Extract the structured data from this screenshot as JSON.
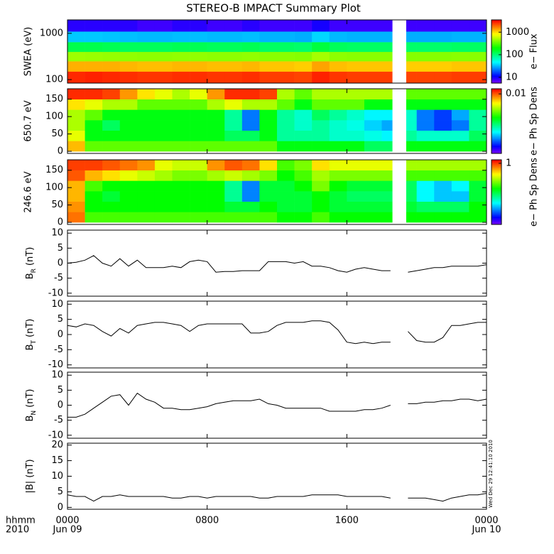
{
  "title": "STEREO-B IMPACT Summary Plot",
  "x_label": [
    "hhmm",
    "2010"
  ],
  "xlim": [
    0,
    24
  ],
  "xticks": [
    {
      "value": 0,
      "label": "0000",
      "date": "Jun 09"
    },
    {
      "value": 8,
      "label": "0800"
    },
    {
      "value": 16,
      "label": "1600"
    },
    {
      "value": 24,
      "label": "0000",
      "date": "Jun 10"
    }
  ],
  "timestamp": "Wed Dec 29 12:41:10 2010",
  "chart_data": [
    {
      "type": "heatmap",
      "ylabel": "SWEA (eV)",
      "ylog": true,
      "ylim": [
        84,
        1950
      ],
      "yticks": [
        100,
        1000
      ],
      "x_bins": [
        0,
        1,
        2,
        3,
        4,
        5,
        6,
        7,
        8,
        9,
        10,
        11,
        12,
        13,
        14,
        15,
        16,
        17,
        18,
        18.6,
        19.4,
        20,
        21,
        22,
        23,
        24
      ],
      "y_bins": [
        84,
        150,
        250,
        400,
        650,
        1100,
        1950
      ],
      "values": [
        [
          2800,
          2900,
          2800,
          2700,
          2600,
          2600,
          2700,
          2700,
          2600,
          2600,
          2700,
          2500,
          2500,
          2400,
          2900,
          2600,
          2500,
          2500,
          2500,
          null,
          2400,
          2400,
          2400,
          2500,
          2500
        ],
        [
          1300,
          1300,
          1300,
          1250,
          1200,
          1200,
          1250,
          1250,
          1200,
          1200,
          1250,
          1150,
          1150,
          1100,
          1400,
          1200,
          1150,
          1150,
          1150,
          null,
          1100,
          1100,
          1100,
          1150,
          1150
        ],
        [
          480,
          470,
          460,
          450,
          440,
          440,
          450,
          450,
          440,
          440,
          450,
          430,
          430,
          420,
          500,
          440,
          430,
          430,
          430,
          null,
          420,
          420,
          420,
          430,
          430
        ],
        [
          130,
          130,
          125,
          120,
          120,
          120,
          125,
          125,
          120,
          120,
          125,
          115,
          115,
          110,
          140,
          120,
          115,
          115,
          115,
          null,
          110,
          110,
          110,
          115,
          115
        ],
        [
          35,
          35,
          34,
          33,
          32,
          32,
          33,
          33,
          32,
          32,
          33,
          31,
          31,
          30,
          38,
          32,
          31,
          31,
          31,
          null,
          30,
          30,
          30,
          31,
          31
        ],
        [
          9,
          9,
          9,
          9,
          8,
          8,
          9,
          9,
          8,
          8,
          9,
          8,
          8,
          8,
          10,
          8,
          8,
          8,
          8,
          null,
          8,
          8,
          8,
          8,
          8
        ]
      ],
      "colorbar": {
        "label": "e− Flux",
        "log": true,
        "lim": [
          5.5,
          3500
        ],
        "ticks": [
          10,
          100,
          1000
        ]
      }
    },
    {
      "type": "heatmap",
      "ylabel": "650.7 eV",
      "ylog": false,
      "ylim": [
        -6,
        180
      ],
      "yticks": [
        0,
        50,
        100,
        150
      ],
      "x_bins": [
        0,
        1,
        2,
        3,
        4,
        5,
        6,
        7,
        8,
        9,
        10,
        11,
        12,
        13,
        14,
        15,
        16,
        17,
        18,
        18.6,
        19.4,
        20,
        21,
        22,
        23,
        24
      ],
      "y_bins": [
        0,
        30,
        60,
        90,
        120,
        150,
        180
      ],
      "values": [
        [
          0.007,
          0.003,
          0.003,
          0.003,
          0.003,
          0.003,
          0.003,
          0.003,
          0.003,
          0.003,
          0.003,
          0.003,
          0.002,
          0.002,
          0.002,
          0.002,
          0.002,
          0.0015,
          0.0015,
          null,
          0.002,
          0.002,
          0.002,
          0.002,
          0.002
        ],
        [
          0.005,
          0.002,
          0.002,
          0.002,
          0.002,
          0.002,
          0.002,
          0.002,
          0.002,
          0.0015,
          0.0015,
          0.002,
          0.0012,
          0.0012,
          0.0012,
          0.001,
          0.001,
          0.0009,
          0.0008,
          null,
          0.0012,
          0.001,
          0.001,
          0.001,
          0.0015
        ],
        [
          0.004,
          0.002,
          0.0015,
          0.002,
          0.002,
          0.002,
          0.002,
          0.002,
          0.002,
          0.0012,
          0.0005,
          0.002,
          0.0012,
          0.001,
          0.0012,
          0.001,
          0.0009,
          0.0007,
          0.0006,
          null,
          0.001,
          0.0005,
          0.0004,
          0.0005,
          0.0012
        ],
        [
          0.004,
          0.003,
          0.002,
          0.002,
          0.002,
          0.002,
          0.002,
          0.002,
          0.002,
          0.0012,
          0.0005,
          0.002,
          0.0012,
          0.001,
          0.0015,
          0.0012,
          0.001,
          0.0008,
          0.0008,
          null,
          0.001,
          0.0005,
          0.0004,
          0.0006,
          0.0012
        ],
        [
          0.006,
          0.005,
          0.004,
          0.004,
          0.003,
          0.003,
          0.003,
          0.003,
          0.004,
          0.005,
          0.004,
          0.004,
          0.003,
          0.002,
          0.003,
          0.003,
          0.003,
          0.002,
          0.002,
          null,
          0.002,
          0.002,
          0.002,
          0.002,
          0.002
        ],
        [
          0.012,
          0.012,
          0.011,
          0.008,
          0.006,
          0.005,
          0.004,
          0.005,
          0.008,
          0.012,
          0.012,
          0.011,
          0.004,
          0.003,
          0.004,
          0.004,
          0.004,
          0.004,
          0.004,
          null,
          0.003,
          0.003,
          0.003,
          0.003,
          0.003
        ]
      ],
      "colorbar": {
        "label": "e− Ph Sp Dens",
        "log": true,
        "lim": [
          0.0002,
          0.014
        ],
        "ticks": [
          0.01
        ]
      }
    },
    {
      "type": "heatmap",
      "ylabel": "246.6 eV",
      "ylog": false,
      "ylim": [
        -6,
        180
      ],
      "yticks": [
        0,
        50,
        100,
        150
      ],
      "x_bins": [
        0,
        1,
        2,
        3,
        4,
        5,
        6,
        7,
        8,
        9,
        10,
        11,
        12,
        13,
        14,
        15,
        16,
        17,
        18,
        18.6,
        19.4,
        20,
        21,
        22,
        23,
        24
      ],
      "y_bins": [
        0,
        30,
        60,
        90,
        120,
        150,
        180
      ],
      "values": [
        [
          0.8,
          0.2,
          0.2,
          0.2,
          0.2,
          0.2,
          0.2,
          0.2,
          0.2,
          0.2,
          0.2,
          0.2,
          0.15,
          0.15,
          0.2,
          0.15,
          0.15,
          0.15,
          0.15,
          null,
          0.15,
          0.15,
          0.15,
          0.15,
          0.15
        ],
        [
          0.7,
          0.15,
          0.15,
          0.15,
          0.15,
          0.15,
          0.15,
          0.15,
          0.15,
          0.12,
          0.12,
          0.15,
          0.12,
          0.12,
          0.15,
          0.12,
          0.12,
          0.12,
          0.12,
          null,
          0.12,
          0.1,
          0.1,
          0.1,
          0.15
        ],
        [
          0.6,
          0.15,
          0.12,
          0.15,
          0.15,
          0.15,
          0.15,
          0.15,
          0.15,
          0.08,
          0.03,
          0.12,
          0.12,
          0.12,
          0.15,
          0.12,
          0.1,
          0.1,
          0.1,
          null,
          0.1,
          0.05,
          0.04,
          0.04,
          0.12
        ],
        [
          0.6,
          0.2,
          0.15,
          0.15,
          0.15,
          0.15,
          0.15,
          0.15,
          0.15,
          0.08,
          0.03,
          0.12,
          0.12,
          0.15,
          0.25,
          0.15,
          0.12,
          0.12,
          0.12,
          null,
          0.1,
          0.05,
          0.04,
          0.05,
          0.12
        ],
        [
          0.9,
          0.6,
          0.5,
          0.4,
          0.35,
          0.3,
          0.25,
          0.25,
          0.3,
          0.35,
          0.3,
          0.25,
          0.15,
          0.2,
          0.3,
          0.25,
          0.25,
          0.25,
          0.25,
          null,
          0.2,
          0.2,
          0.2,
          0.2,
          0.2
        ],
        [
          1,
          1,
          0.9,
          0.8,
          0.7,
          0.4,
          0.35,
          0.35,
          0.7,
          0.9,
          0.8,
          0.5,
          0.2,
          0.25,
          0.5,
          0.4,
          0.4,
          0.4,
          0.4,
          null,
          0.3,
          0.3,
          0.3,
          0.3,
          0.3
        ]
      ],
      "colorbar": {
        "label": "e− Ph Sp Dens",
        "log": true,
        "lim": [
          0.01,
          1.3
        ],
        "ticks": [
          1
        ]
      }
    },
    {
      "type": "line",
      "ylabel": "B",
      "ylabel_sub": "R",
      "ylabel_unit": "(nT)",
      "ylim": [
        -11,
        11
      ],
      "yticks": [
        -10,
        -5,
        0,
        5,
        10
      ],
      "color": "#000000",
      "x": [
        0,
        0.5,
        1,
        1.5,
        2,
        2.5,
        3,
        3.5,
        4,
        4.5,
        5,
        5.5,
        6,
        6.5,
        7,
        7.5,
        8,
        8.5,
        9,
        9.5,
        10,
        10.5,
        11,
        11.5,
        12,
        12.5,
        13,
        13.5,
        14,
        14.5,
        15,
        15.5,
        16,
        16.5,
        17,
        17.5,
        18,
        18.5,
        19,
        19.5,
        20,
        20.5,
        21,
        21.5,
        22,
        22.5,
        23,
        23.5,
        24
      ],
      "values": [
        0,
        0.3,
        1,
        2.5,
        0,
        -1,
        1.5,
        -1,
        1,
        -1.5,
        -1.5,
        -1.5,
        -1,
        -1.5,
        0.5,
        1,
        0.5,
        -3,
        -2.8,
        -2.8,
        -2.5,
        -2.5,
        -2.5,
        0.5,
        0.5,
        0.5,
        0,
        0.5,
        -1,
        -1,
        -1.5,
        -2.5,
        -3,
        -2,
        -1.5,
        -2,
        -2.5,
        -2.5,
        null,
        -3,
        -2.5,
        -2,
        -1.5,
        -1.5,
        -1,
        -1,
        -1,
        -1,
        -0.5
      ]
    },
    {
      "type": "line",
      "ylabel": "B",
      "ylabel_sub": "T",
      "ylabel_unit": "(nT)",
      "ylim": [
        -11,
        11
      ],
      "yticks": [
        -10,
        -5,
        0,
        5,
        10
      ],
      "color": "#000000",
      "x": [
        0,
        0.5,
        1,
        1.5,
        2,
        2.5,
        3,
        3.5,
        4,
        4.5,
        5,
        5.5,
        6,
        6.5,
        7,
        7.5,
        8,
        8.5,
        9,
        9.5,
        10,
        10.5,
        11,
        11.5,
        12,
        12.5,
        13,
        13.5,
        14,
        14.5,
        15,
        15.5,
        16,
        16.5,
        17,
        17.5,
        18,
        18.5,
        19,
        19.5,
        20,
        20.5,
        21,
        21.5,
        22,
        22.5,
        23,
        23.5,
        24
      ],
      "values": [
        3,
        2.5,
        3.5,
        3,
        1,
        -0.5,
        2,
        0.5,
        3,
        3.5,
        4,
        4,
        3.5,
        3,
        1,
        3,
        3.5,
        3.5,
        3.5,
        3.5,
        3.5,
        0.5,
        0.5,
        1,
        3,
        4,
        4,
        4,
        4.5,
        4.5,
        4,
        1.5,
        -2.5,
        -3,
        -2.5,
        -3,
        -2.5,
        -2.5,
        null,
        1,
        -2,
        -2.5,
        -2.5,
        -1,
        3,
        3,
        3.5,
        4,
        4
      ]
    },
    {
      "type": "line",
      "ylabel": "B",
      "ylabel_sub": "N",
      "ylabel_unit": "(nT)",
      "ylim": [
        -11,
        11
      ],
      "yticks": [
        -10,
        -5,
        0,
        5,
        10
      ],
      "color": "#000000",
      "x": [
        0,
        0.5,
        1,
        1.5,
        2,
        2.5,
        3,
        3.5,
        4,
        4.5,
        5,
        5.5,
        6,
        6.5,
        7,
        7.5,
        8,
        8.5,
        9,
        9.5,
        10,
        10.5,
        11,
        11.5,
        12,
        12.5,
        13,
        13.5,
        14,
        14.5,
        15,
        15.5,
        16,
        16.5,
        17,
        17.5,
        18,
        18.5,
        19,
        19.5,
        20,
        20.5,
        21,
        21.5,
        22,
        22.5,
        23,
        23.5,
        24
      ],
      "values": [
        -4,
        -4,
        -3,
        -1,
        1,
        3,
        3.5,
        0,
        4,
        2,
        1,
        -1,
        -1,
        -1.5,
        -1.5,
        -1,
        -0.5,
        0.5,
        1,
        1.5,
        1.5,
        1.5,
        2,
        0.5,
        0,
        -1,
        -1,
        -1,
        -1,
        -1,
        -2,
        -2,
        -2,
        -2,
        -1.5,
        -1.5,
        -1,
        0,
        null,
        0.5,
        0.5,
        1,
        1,
        1.5,
        1.5,
        2,
        2,
        1.5,
        2
      ]
    },
    {
      "type": "line",
      "ylabel": "|B| (nT)",
      "ylim": [
        -0.6,
        20.6
      ],
      "yticks": [
        0,
        5,
        10,
        15,
        20
      ],
      "color": "#000000",
      "x": [
        0,
        0.5,
        1,
        1.5,
        2,
        2.5,
        3,
        3.5,
        4,
        4.5,
        5,
        5.5,
        6,
        6.5,
        7,
        7.5,
        8,
        8.5,
        9,
        9.5,
        10,
        10.5,
        11,
        11.5,
        12,
        12.5,
        13,
        13.5,
        14,
        14.5,
        15,
        15.5,
        16,
        16.5,
        17,
        17.5,
        18,
        18.5,
        19,
        19.5,
        20,
        20.5,
        21,
        21.5,
        22,
        22.5,
        23,
        23.5,
        24
      ],
      "values": [
        4,
        3.5,
        3.5,
        2,
        3.5,
        3.5,
        4,
        3.5,
        3.5,
        3.5,
        3.5,
        3.5,
        3,
        3,
        3.5,
        3.5,
        3,
        3.5,
        3.5,
        3.5,
        3.5,
        3.5,
        3,
        3,
        3.5,
        3.5,
        3.5,
        3.5,
        4,
        4,
        4,
        4,
        3.5,
        3.5,
        3.5,
        3.5,
        3.5,
        3,
        null,
        3,
        3,
        3,
        2.5,
        2,
        3,
        3.5,
        4,
        4,
        4.5
      ]
    }
  ]
}
